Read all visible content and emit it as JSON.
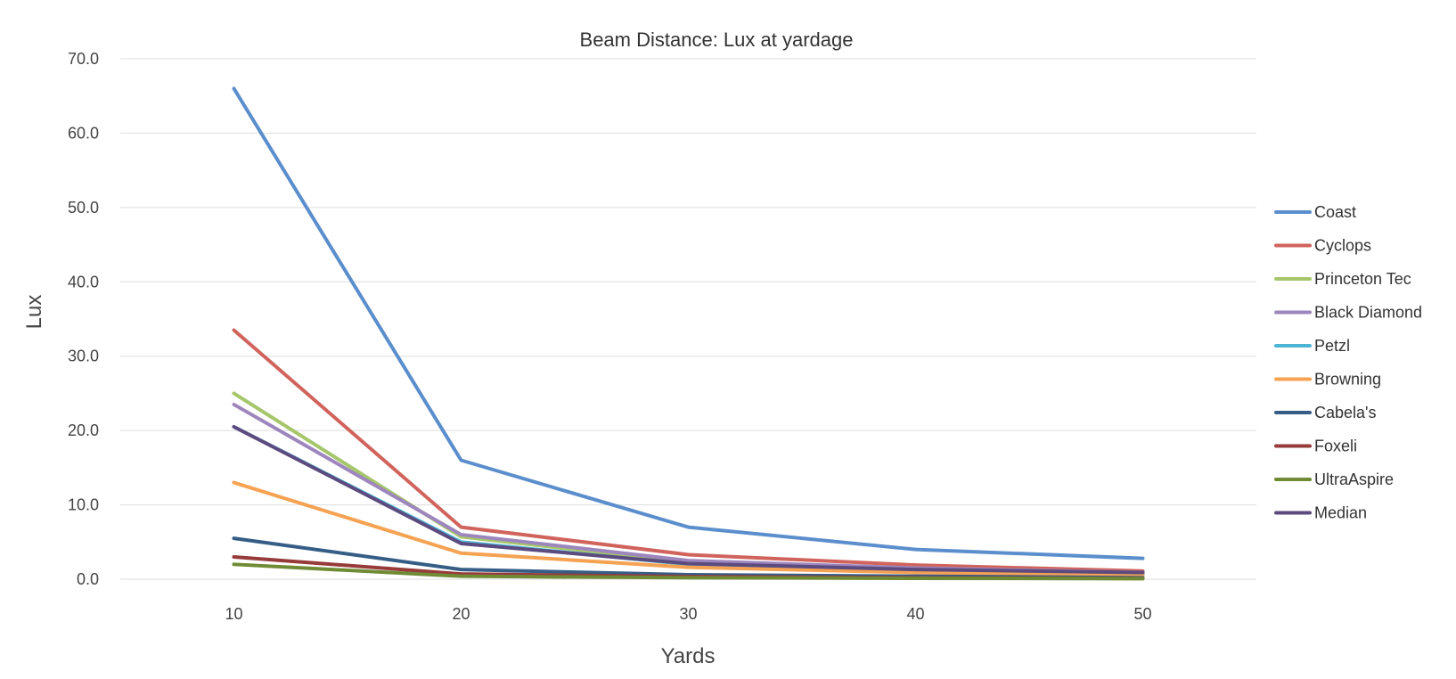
{
  "chart_data": {
    "type": "line",
    "title": "Beam Distance: Lux at yardage",
    "xlabel": "Yards",
    "ylabel": "Lux",
    "x": [
      10,
      20,
      30,
      40,
      50
    ],
    "x_tick_labels": [
      "10",
      "20",
      "30",
      "40",
      "50"
    ],
    "ylim": [
      0,
      70
    ],
    "y_tick_labels": [
      "0.0",
      "10.0",
      "20.0",
      "30.0",
      "40.0",
      "50.0",
      "60.0",
      "70.0"
    ],
    "grid": true,
    "legend_position": "right",
    "series": [
      {
        "name": "Coast",
        "color": "#5b8ecc",
        "values": [
          66.0,
          16.0,
          7.0,
          4.0,
          2.8
        ]
      },
      {
        "name": "Cyclops",
        "color": "#d0645d",
        "values": [
          33.5,
          7.0,
          3.3,
          1.9,
          1.1
        ]
      },
      {
        "name": "Princeton Tec",
        "color": "#a5c66a",
        "values": [
          25.0,
          5.7,
          2.3,
          1.3,
          0.8
        ]
      },
      {
        "name": "Black Diamond",
        "color": "#9d86bd",
        "values": [
          23.5,
          6.0,
          2.5,
          1.5,
          0.9
        ]
      },
      {
        "name": "Petzl",
        "color": "#4fb5d6",
        "values": [
          20.5,
          5.0,
          2.0,
          1.2,
          0.7
        ]
      },
      {
        "name": "Browning",
        "color": "#f6a253",
        "values": [
          13.0,
          3.5,
          1.6,
          0.9,
          0.5
        ]
      },
      {
        "name": "Cabela's",
        "color": "#355d86",
        "values": [
          5.5,
          1.3,
          0.6,
          0.4,
          0.2
        ]
      },
      {
        "name": "Foxeli",
        "color": "#973a3a",
        "values": [
          3.0,
          0.7,
          0.35,
          0.2,
          0.1
        ]
      },
      {
        "name": "UltraAspire",
        "color": "#6f8b35",
        "values": [
          2.0,
          0.4,
          0.2,
          0.12,
          0.08
        ]
      },
      {
        "name": "Median",
        "color": "#5c4b7f",
        "values": [
          20.5,
          4.8,
          2.1,
          1.3,
          0.9
        ]
      }
    ]
  }
}
